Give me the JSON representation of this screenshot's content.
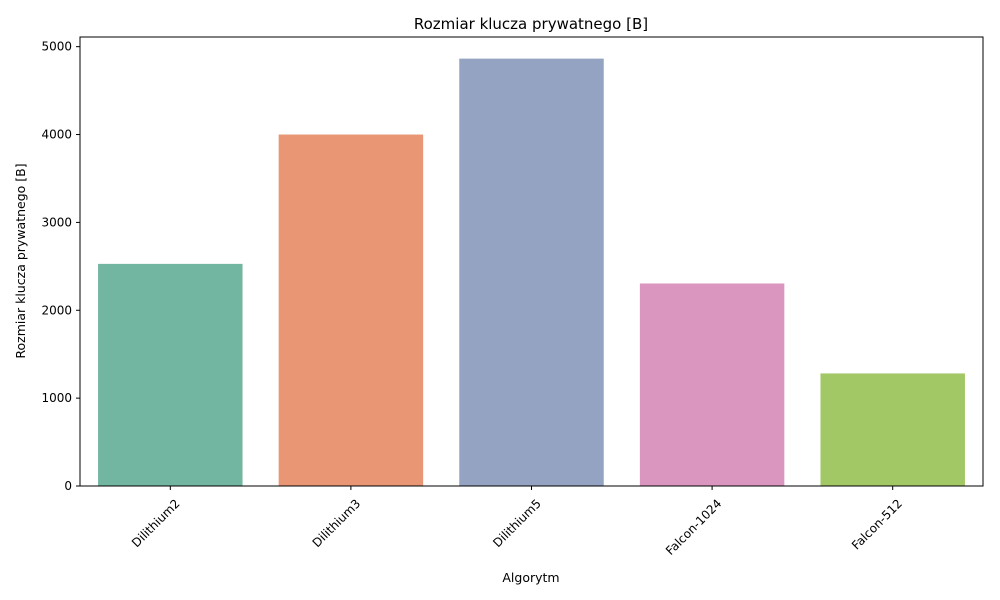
{
  "chart_data": {
    "type": "bar",
    "title": "Rozmiar klucza prywatnego [B]",
    "xlabel": "Algorytm",
    "ylabel": "Rozmiar klucza prywatnego [B]",
    "categories": [
      "Dilithium2",
      "Dilithium3",
      "Dilithium5",
      "Falcon-1024",
      "Falcon-512"
    ],
    "values": [
      2528,
      4000,
      4864,
      2305,
      1281
    ],
    "colors": [
      "#72b6a1",
      "#e99675",
      "#95a3c3",
      "#db96c0",
      "#a2c865"
    ],
    "ylim": [
      0,
      5110
    ],
    "yticks": [
      0,
      1000,
      2000,
      3000,
      4000,
      5000
    ],
    "grid": false,
    "legend": "none"
  }
}
